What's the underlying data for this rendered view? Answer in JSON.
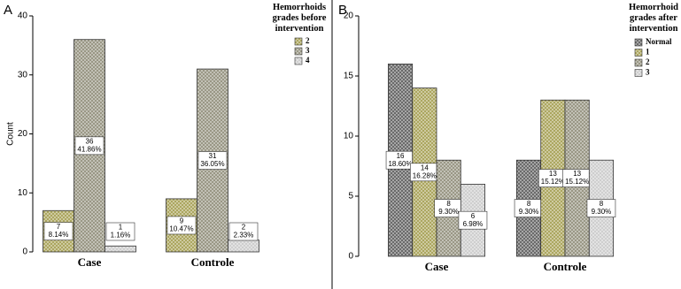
{
  "chart_data": [
    {
      "type": "bar",
      "panel_label": "A",
      "y_label": "Count",
      "legend_title": "Hemorrhoids grades before intervention",
      "categories": [
        "Case",
        "Controle"
      ],
      "ylim": [
        0,
        40
      ],
      "yticks": [
        0,
        10,
        20,
        30,
        40
      ],
      "series": [
        {
          "name": "2",
          "color": "#a39d4f",
          "values": [
            7,
            9
          ],
          "percent_labels": [
            "8.14%",
            "10.47%"
          ]
        },
        {
          "name": "3",
          "color": "#8f8c78",
          "values": [
            36,
            31
          ],
          "percent_labels": [
            "41.86%",
            "36.05%"
          ]
        },
        {
          "name": "4",
          "color": "#c9c9c9",
          "values": [
            1,
            2
          ],
          "percent_labels": [
            "1.16%",
            "2.33%"
          ]
        }
      ]
    },
    {
      "type": "bar",
      "panel_label": "B",
      "y_label": null,
      "legend_title": "Hemorrhoid grades after intervention",
      "categories": [
        "Case",
        "Controle"
      ],
      "ylim": [
        0,
        20
      ],
      "yticks": [
        0,
        5,
        10,
        15,
        20
      ],
      "series": [
        {
          "name": "Normal",
          "color": "#5a5a5a",
          "values": [
            16,
            8
          ],
          "percent_labels": [
            "18.60%",
            "9.30%"
          ]
        },
        {
          "name": "1",
          "color": "#a39d4f",
          "values": [
            14,
            13
          ],
          "percent_labels": [
            "16.28%",
            "15.12%"
          ]
        },
        {
          "name": "2",
          "color": "#8f8c78",
          "values": [
            8,
            13
          ],
          "percent_labels": [
            "9.30%",
            "15.12%"
          ]
        },
        {
          "name": "3",
          "color": "#c9c9c9",
          "values": [
            6,
            8
          ],
          "percent_labels": [
            "6.98%",
            "9.30%"
          ]
        }
      ]
    }
  ]
}
